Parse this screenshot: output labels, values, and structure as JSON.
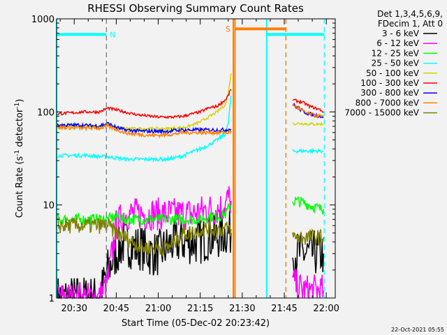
{
  "chart_data": {
    "type": "line",
    "title": "RHESSI Observing Summary Count Rates",
    "xlabel": "Start Time (05-Dec-02 20:23:42)",
    "ylabel_main": "Count Rate (s",
    "ylabel_sup1": "-1",
    "ylabel_mid": " detector",
    "ylabel_sup2": "-1",
    "ylabel_end": ")",
    "x_units": "minutes after 20:00",
    "xlim": [
      23.7,
      123.2
    ],
    "ylim": [
      1,
      1000
    ],
    "yscale": "log",
    "xticks": [
      {
        "value": 30,
        "label": "20:30"
      },
      {
        "value": 45,
        "label": "20:45"
      },
      {
        "value": 60,
        "label": "21:00"
      },
      {
        "value": 75,
        "label": "21:15"
      },
      {
        "value": 90,
        "label": "21:30"
      },
      {
        "value": 105,
        "label": "21:45"
      },
      {
        "value": 120,
        "label": "22:00"
      }
    ],
    "yticks": [
      {
        "value": 1,
        "label": "1"
      },
      {
        "value": 10,
        "label": "10"
      },
      {
        "value": 100,
        "label": "100"
      },
      {
        "value": 1000,
        "label": "1000"
      }
    ],
    "legend_header": [
      "Det 1,3,4,5,6,9,",
      "FDecim 1, Att 0"
    ],
    "legend_position": "right",
    "footer": "22-Oct-2021 05:55",
    "segments": [
      {
        "x": [
          24,
          27,
          30,
          33,
          36,
          39,
          42,
          45,
          48,
          51,
          54,
          57,
          60,
          63,
          66,
          69,
          72,
          75,
          78,
          81,
          84,
          85,
          86
        ]
      },
      {
        "x": [
          108,
          110,
          112,
          114,
          116,
          118,
          119
        ]
      }
    ],
    "series": [
      {
        "name": "3 - 6 keV",
        "color": "#000000",
        "values": [
          [
            1,
            1,
            1,
            1,
            1,
            1,
            2,
            3,
            4,
            3.5,
            3.5,
            3,
            3,
            3.5,
            4,
            4,
            4,
            4,
            4.5,
            4.5,
            5,
            5,
            5
          ],
          [
            3,
            3,
            3,
            3,
            3,
            3,
            3
          ]
        ]
      },
      {
        "name": "6 - 12 keV",
        "color": "#ff00ff",
        "values": [
          [
            1,
            1,
            1,
            1,
            1,
            1,
            1.5,
            6,
            8,
            8,
            8,
            8,
            8,
            8,
            8,
            8,
            8,
            8.5,
            9,
            9,
            10,
            12,
            11
          ],
          [
            1.5,
            1.3,
            1.2,
            1.2,
            1.2,
            1.2,
            1.2
          ]
        ]
      },
      {
        "name": "12 - 25 keV",
        "color": "#00ff00",
        "values": [
          [
            7,
            7,
            7,
            7,
            7,
            7,
            7,
            7.5,
            7,
            7,
            7,
            7,
            7,
            7,
            7,
            7,
            7,
            7,
            7.5,
            7.5,
            8,
            9,
            10
          ],
          [
            11,
            11,
            10.5,
            10,
            9.5,
            9,
            9
          ]
        ]
      },
      {
        "name": "25 - 50 keV",
        "color": "#00ffff",
        "values": [
          [
            34,
            34,
            34,
            34,
            34,
            33,
            33,
            32,
            31,
            31,
            31,
            31,
            31,
            31,
            32,
            34,
            37,
            40,
            44,
            50,
            58,
            75,
            150
          ],
          [
            38,
            38,
            38,
            38,
            38,
            38,
            38
          ]
        ]
      },
      {
        "name": "50 - 100 keV",
        "color": "#d4d400",
        "values": [
          [
            70,
            70,
            70,
            70,
            70,
            70,
            72,
            68,
            67,
            66,
            66,
            66,
            66,
            66,
            67,
            68,
            72,
            78,
            88,
            100,
            120,
            160,
            260
          ],
          [
            75,
            75,
            75,
            74,
            74,
            74,
            74
          ]
        ]
      },
      {
        "name": "100 - 300 keV",
        "color": "#ff0000",
        "values": [
          [
            95,
            97,
            98,
            100,
            100,
            100,
            110,
            105,
            100,
            95,
            92,
            90,
            88,
            88,
            88,
            90,
            95,
            100,
            110,
            115,
            135,
            150,
            175
          ],
          [
            135,
            130,
            125,
            115,
            110,
            105,
            100
          ]
        ]
      },
      {
        "name": "300 - 800 keV",
        "color": "#0000ff",
        "values": [
          [
            72,
            72,
            72,
            72,
            71,
            71,
            75,
            68,
            64,
            63,
            62,
            62,
            62,
            62,
            63,
            64,
            64,
            64,
            64,
            64,
            64,
            65,
            65
          ],
          [
            120,
            110,
            100,
            95,
            92,
            90,
            88
          ]
        ]
      },
      {
        "name": "800 - 7000 keV",
        "color": "#ff8000",
        "values": [
          [
            68,
            68,
            67,
            67,
            67,
            67,
            70,
            65,
            60,
            58,
            57,
            56,
            56,
            57,
            58,
            60,
            60,
            60,
            60,
            60,
            60,
            60,
            62
          ],
          [
            120,
            110,
            100,
            95,
            92,
            90,
            88
          ]
        ]
      },
      {
        "name": "7000 - 15000 keV",
        "color": "#808000",
        "values": [
          [
            6,
            6,
            6,
            6,
            6,
            6,
            6,
            5,
            4.5,
            4,
            3.5,
            3.5,
            3.5,
            3.5,
            4,
            5,
            5,
            5.5,
            5.5,
            5.5,
            5.5,
            5.5,
            5.5
          ],
          [
            4.5,
            4.5,
            4.5,
            4.5,
            4.5,
            4.5,
            4.5
          ]
        ]
      }
    ],
    "flags": [
      {
        "label": "N",
        "color": "#00ffff",
        "level": 680,
        "start": 23.7,
        "end": 41.5
      },
      {
        "label": "S",
        "color": "#ff8000",
        "level": 780,
        "start": 87.4,
        "end": 105.6
      },
      {
        "label": "",
        "color": "#00ffff",
        "level": 680,
        "start": 98.7,
        "end": 119.3
      }
    ],
    "vlines": [
      {
        "x": 23.7,
        "color": "#00ffff",
        "style": "solid"
      },
      {
        "x": 41.5,
        "color": "#00ffff",
        "style": "dashed"
      },
      {
        "x": 41.5,
        "color": "#808080",
        "style": "dashed"
      },
      {
        "x": 86.8,
        "color": "#ff8000",
        "style": "solid"
      },
      {
        "x": 87.4,
        "color": "#ff8000",
        "style": "solid"
      },
      {
        "x": 98.7,
        "color": "#00ffff",
        "style": "solid"
      },
      {
        "x": 105.6,
        "color": "#808080",
        "style": "dashed"
      },
      {
        "x": 105.6,
        "color": "#ff8000",
        "style": "dashed"
      },
      {
        "x": 119.3,
        "color": "#00ffff",
        "style": "dashed"
      }
    ]
  }
}
